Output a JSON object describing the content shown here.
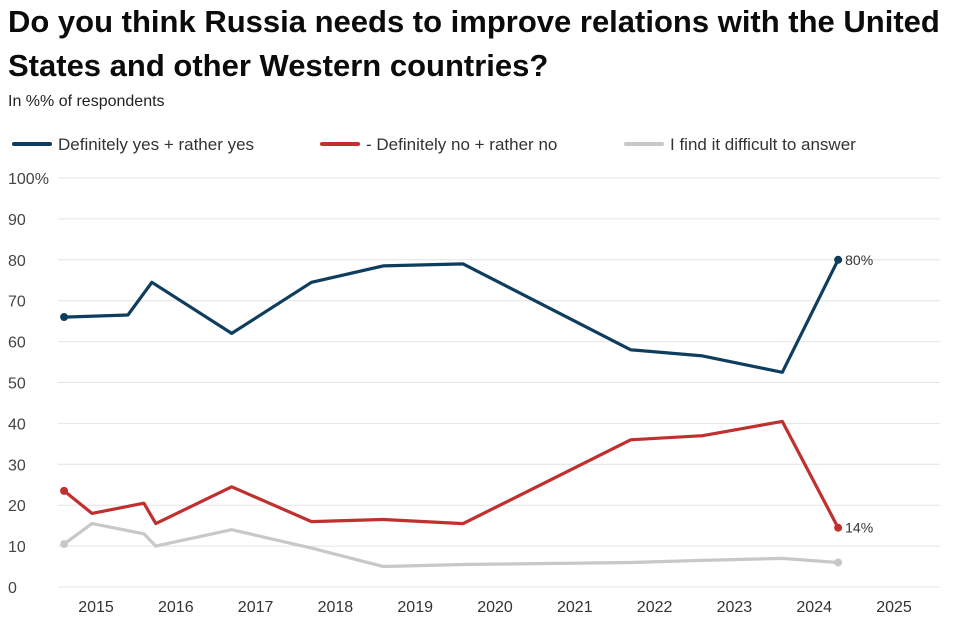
{
  "chart_data": {
    "type": "line",
    "title": "Do you think Russia needs to improve relations with the United States and other Western countries?",
    "subtitle": "In %% of respondents",
    "ylim": [
      0,
      100
    ],
    "y_ticks": [
      "0",
      "10",
      "20",
      "30",
      "40",
      "50",
      "60",
      "70",
      "80",
      "90",
      "100%"
    ],
    "x_ticks": [
      "2015",
      "2016",
      "2017",
      "2018",
      "2019",
      "2020",
      "2021",
      "2022",
      "2023",
      "2024",
      "2025"
    ],
    "grid": true,
    "legend_position": "top",
    "series": [
      {
        "name": "Definitely yes + rather yes",
        "color": "#0f3d5e",
        "x": [
          2014.6,
          2015.4,
          2015.7,
          2016.7,
          2017.7,
          2018.6,
          2019.6,
          2021.7,
          2022.6,
          2023.6,
          2024.3
        ],
        "values": [
          66,
          66.5,
          74.5,
          62,
          74.5,
          78.5,
          79,
          58,
          56.5,
          52.5,
          80
        ],
        "end_label": "80%"
      },
      {
        "name": "- Definitely no + rather no",
        "color": "#c0302e",
        "x": [
          2014.6,
          2014.95,
          2015.6,
          2015.75,
          2016.7,
          2017.7,
          2018.6,
          2019.6,
          2021.7,
          2022.6,
          2023.6,
          2024.3
        ],
        "values": [
          23.5,
          18,
          20.5,
          15.5,
          24.5,
          16,
          16.5,
          15.5,
          36,
          37,
          40.5,
          14.5
        ],
        "end_label": "14%"
      },
      {
        "name": "I find it difficult to answer",
        "color": "#c8c8c8",
        "x": [
          2014.6,
          2014.95,
          2015.6,
          2015.75,
          2016.7,
          2017.7,
          2018.6,
          2019.6,
          2021.7,
          2022.6,
          2023.6,
          2024.3
        ],
        "values": [
          10.5,
          15.5,
          13,
          10,
          14,
          9.5,
          5,
          5.5,
          6,
          6.5,
          7,
          6
        ],
        "end_label": ""
      }
    ]
  }
}
